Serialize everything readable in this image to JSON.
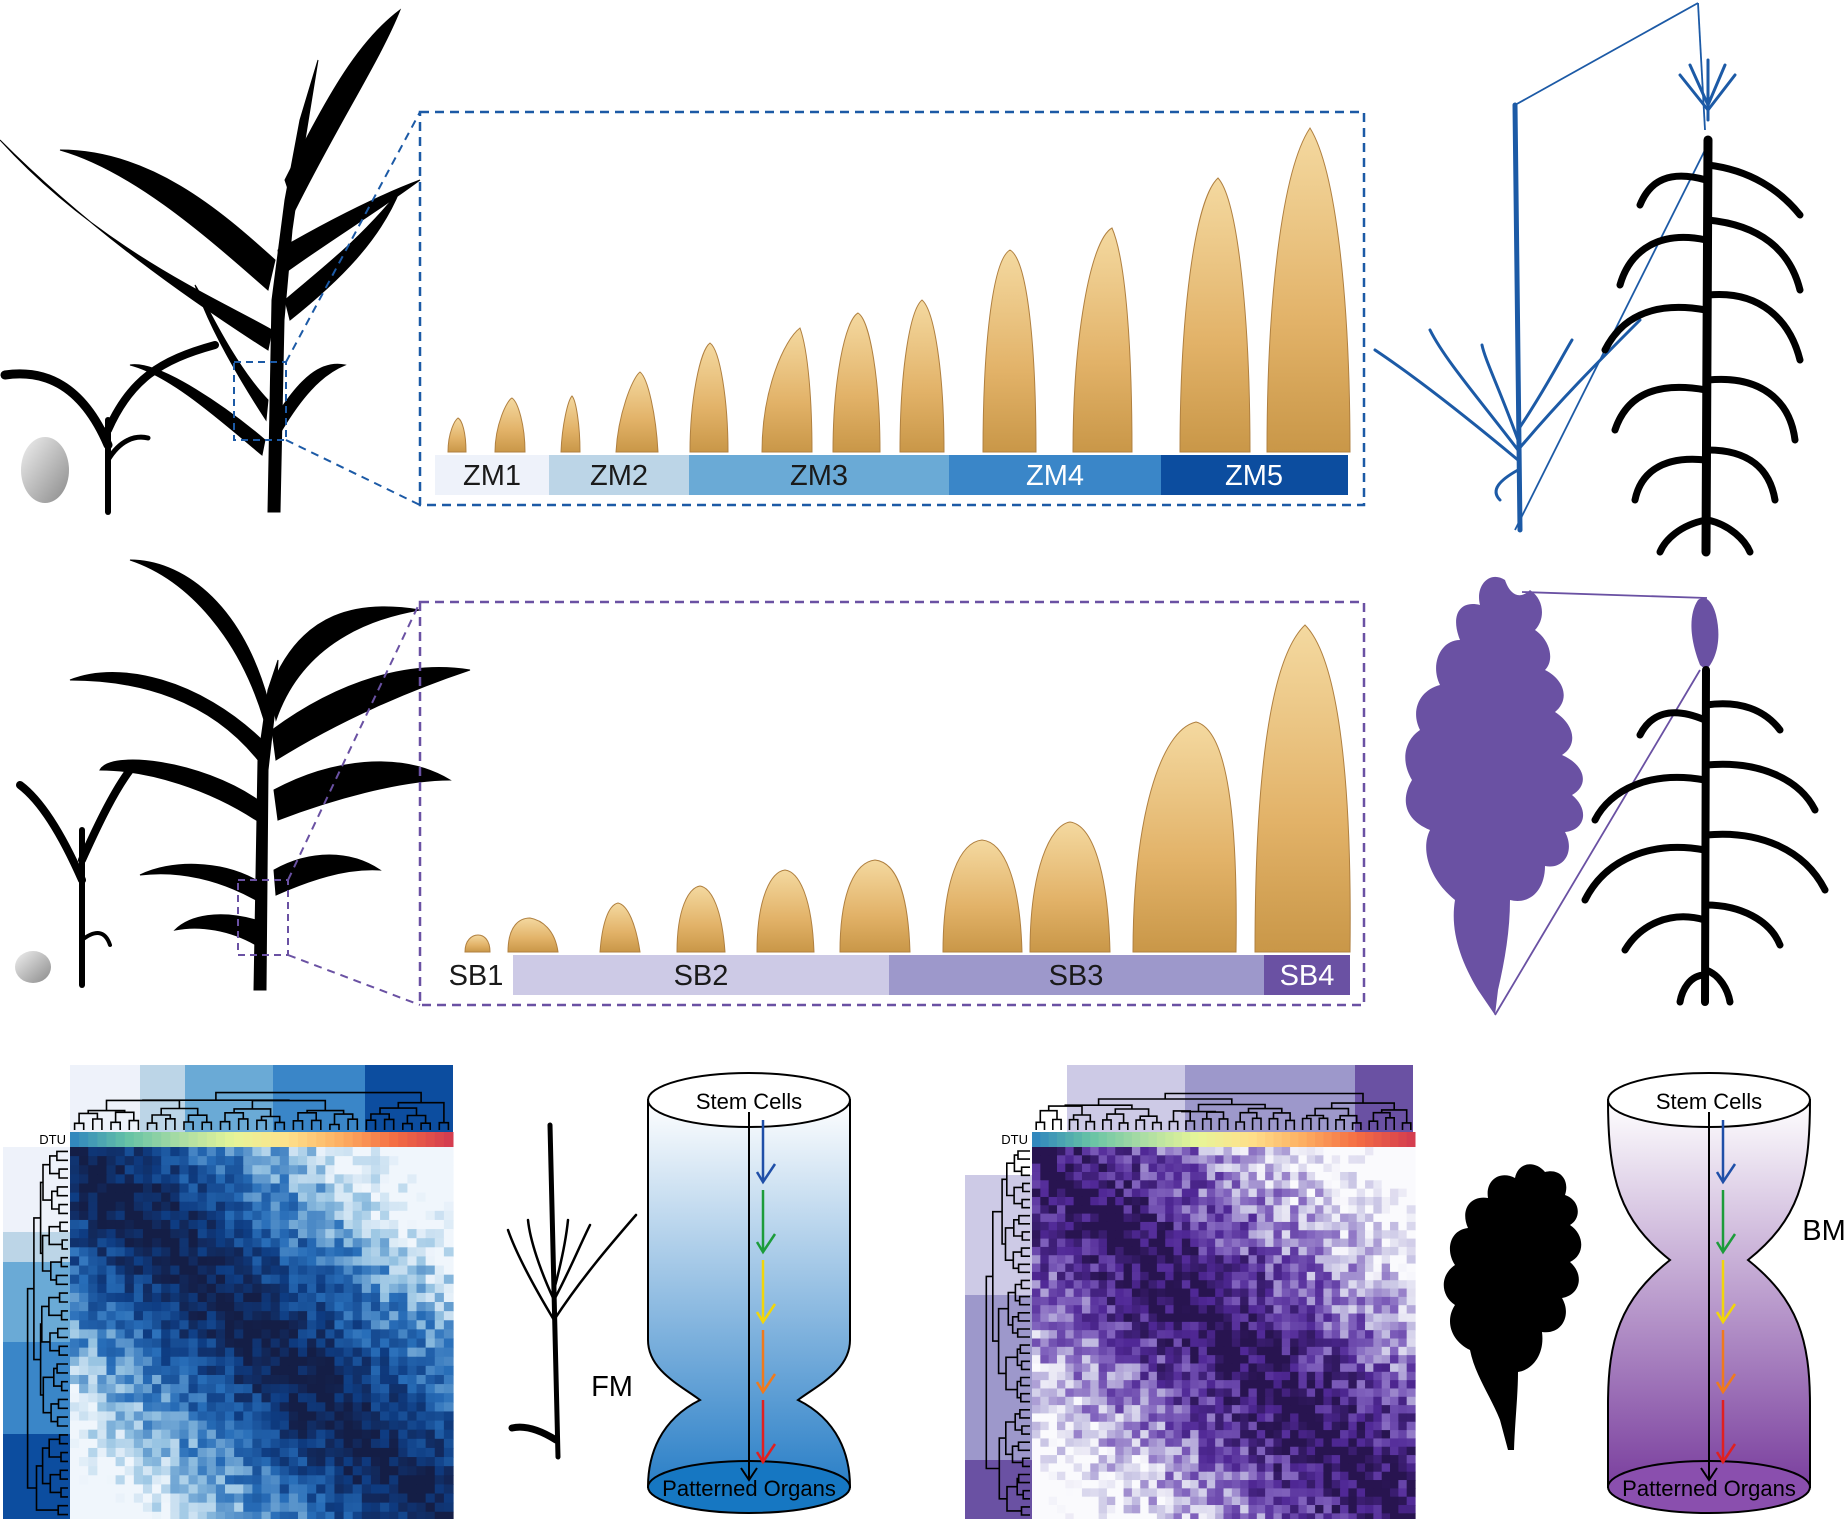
{
  "maize": {
    "stages": [
      "ZM1",
      "ZM2",
      "ZM3",
      "ZM4",
      "ZM5"
    ],
    "colors": [
      "#eef2fa",
      "#bcd5e7",
      "#6aaad6",
      "#3a86c8",
      "#0c4d9f"
    ],
    "text_colors": [
      "#1a1a1a",
      "#1a1a1a",
      "#1a1a1a",
      "#ffffff",
      "#ffffff"
    ],
    "accent": "#1c5aa6",
    "meristem_label": "FM"
  },
  "sorghum": {
    "stages": [
      "SB1",
      "SB2",
      "SB3",
      "SB4"
    ],
    "colors": [
      "#ffffff",
      "#cdcae6",
      "#9d98cb",
      "#6a51a3"
    ],
    "text_colors": [
      "#1a1a1a",
      "#1a1a1a",
      "#1a1a1a",
      "#ffffff"
    ],
    "accent": "#6a51a3",
    "meristem_label": "BM"
  },
  "heatmap": {
    "dtu_label": "DTU"
  },
  "cylinder": {
    "top_label": "Stem Cells",
    "bottom_label": "Patterned Organs",
    "arrow_colors": [
      "#1f4fa8",
      "#1c9c3a",
      "#f2d60a",
      "#f07a1c",
      "#e02020"
    ]
  }
}
